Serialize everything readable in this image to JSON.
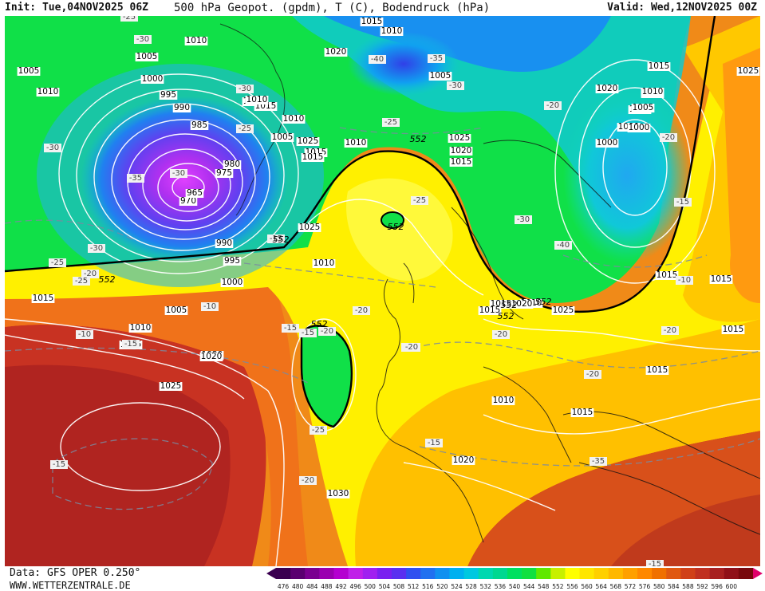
{
  "header": {
    "init": "Init: Tue,04NOV2025 06Z",
    "title": "500 hPa Geopot. (gpdm), T (C), Bodendruck (hPa)",
    "valid": "Valid: Wed,12NOV2025 00Z"
  },
  "footer": {
    "data_source": "Data: GFS OPER 0.250°",
    "website": "WWW.WETTERZENTRALE.DE"
  },
  "color_scale": {
    "values": [
      "476",
      "480",
      "484",
      "488",
      "492",
      "496",
      "500",
      "504",
      "508",
      "512",
      "516",
      "520",
      "524",
      "528",
      "532",
      "536",
      "540",
      "544",
      "548",
      "552",
      "556",
      "560",
      "564",
      "568",
      "572",
      "576",
      "580",
      "584",
      "588",
      "592",
      "596",
      "600"
    ],
    "colors": [
      "#3a0050",
      "#5a0070",
      "#7a0090",
      "#9a00b0",
      "#b400d0",
      "#c020e8",
      "#a020f0",
      "#7a20f0",
      "#5a30f0",
      "#3050f0",
      "#2070f0",
      "#1090f0",
      "#00b0f0",
      "#00c8e0",
      "#00d8b0",
      "#00d890",
      "#00e060",
      "#10e040",
      "#60e800",
      "#c8f000",
      "#ffff00",
      "#ffe600",
      "#ffd000",
      "#ffb800",
      "#ffa000",
      "#ff8800",
      "#f07000",
      "#e05810",
      "#d04018",
      "#c03020",
      "#a82020",
      "#901018",
      "#78080c"
    ]
  },
  "pressure_labels": [
    "1005",
    "1010",
    "1010",
    "1005",
    "1000",
    "995",
    "990",
    "985",
    "980",
    "975",
    "970",
    "965",
    "990",
    "995",
    "1000",
    "1005",
    "1010",
    "1015",
    "1020",
    "1025",
    "1015",
    "1025",
    "1015",
    "1010",
    "1005",
    "1020",
    "1015",
    "1010",
    "1025",
    "1020",
    "1015",
    "1010",
    "1005",
    "1000",
    "1015",
    "1020",
    "1025",
    "1030",
    "1020",
    "1010",
    "1015",
    "1015",
    "1015",
    "1015",
    "1015",
    "1010",
    "1025",
    "1020",
    "1015",
    "1000",
    "1005",
    "1010",
    "1025",
    "1010",
    "1015",
    "1010",
    "1010",
    "1015",
    "1015",
    "1000",
    "1005",
    "1010",
    "1020"
  ],
  "temperature_labels": [
    "-25",
    "-30",
    "-30",
    "-35",
    "-30",
    "-30",
    "-25",
    "-30",
    "-40",
    "-35",
    "-30",
    "-25",
    "-25",
    "-20",
    "-25",
    "-15",
    "-15",
    "-20",
    "-15",
    "-20",
    "-10",
    "-10",
    "-15",
    "-20",
    "-25",
    "-20",
    "-25",
    "-20",
    "-15",
    "-10",
    "-15",
    "-35",
    "-30",
    "-40",
    "-20",
    "-20",
    "-20",
    "-20",
    "-20",
    "-15",
    "-15"
  ],
  "geopotential_labels": [
    "552",
    "552",
    "552",
    "552",
    "552",
    "552",
    "552",
    "552"
  ],
  "map_data": {
    "region": "North Atlantic and Europe",
    "lows": [
      "970",
      "1000"
    ],
    "highs": [
      "1025",
      "1030"
    ]
  }
}
